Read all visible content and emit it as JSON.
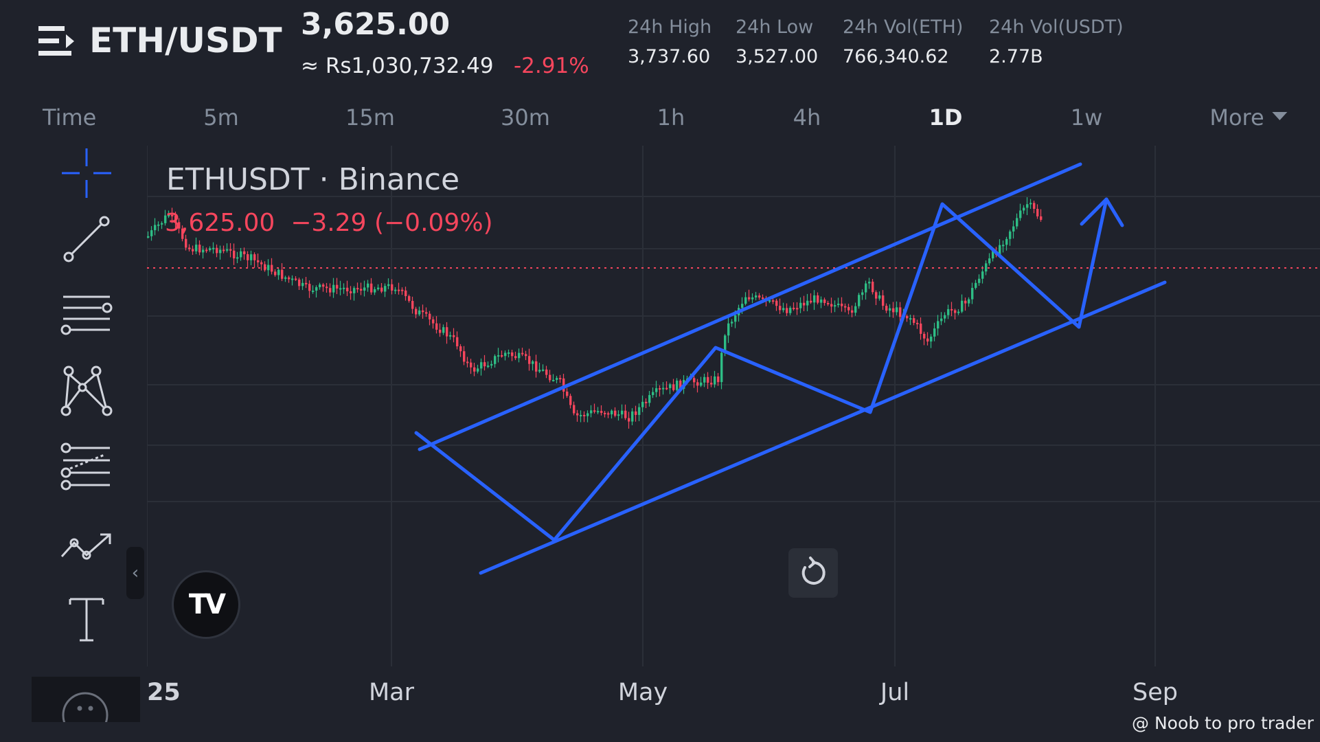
{
  "header": {
    "pair": "ETH/USDT",
    "price": "3,625.00",
    "fiat_price": "≈ Rs1,030,732.49",
    "change_pct": "-2.91%",
    "stats": [
      {
        "label": "24h High",
        "value": "3,737.60"
      },
      {
        "label": "24h Low",
        "value": "3,527.00"
      },
      {
        "label": "24h Vol(ETH)",
        "value": "766,340.62"
      },
      {
        "label": "24h Vol(USDT)",
        "value": "2.77B"
      }
    ]
  },
  "intervals": {
    "time_label": "Time",
    "items": [
      "5m",
      "15m",
      "30m",
      "1h",
      "4h",
      "1D",
      "1w"
    ],
    "active": "1D",
    "more_label": "More"
  },
  "chart": {
    "legend_title": "ETHUSDT · Binance",
    "legend_price": "3,625.00",
    "legend_change": "−3.29 (−0.09%)",
    "logo_text": "TV",
    "time_labels": [
      "25",
      "Mar",
      "May",
      "Jul",
      "Sep"
    ],
    "watermark": "@ Noob to pro trader"
  },
  "toolbar": {
    "tools": [
      "crosshair",
      "trend-line",
      "horizontal-lines",
      "patterns",
      "fib-tool",
      "prediction",
      "text-tool",
      "more-tools"
    ],
    "collapse_glyph": "‹"
  },
  "colors": {
    "background": "#1f222b",
    "up": "#2ebd85",
    "down": "#f6465d",
    "drawing": "#2962ff",
    "accent": "#2962ff"
  }
}
